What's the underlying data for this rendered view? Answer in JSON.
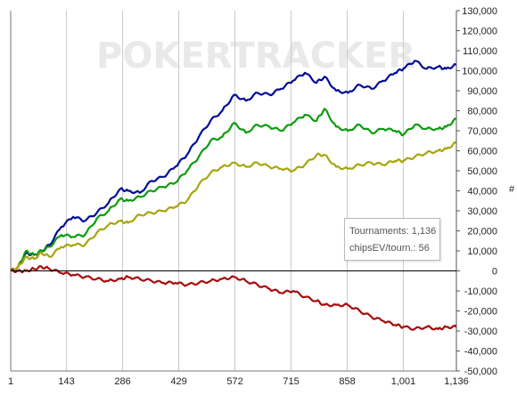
{
  "watermark": "POKERTRACKER",
  "info": {
    "tournaments_label": "Tournaments:",
    "tournaments_value": "1,136",
    "chipsev_label": "chipsEV/tourn.:",
    "chipsev_value": "56"
  },
  "colors": {
    "blue": "#000c96",
    "green": "#0c9c0c",
    "olive": "#a8a50e",
    "red": "#a80c0c",
    "zero_line": "#000000",
    "grid": "#c9c9c9"
  },
  "chart_data": {
    "type": "line",
    "x_ticks": [
      "1",
      "143",
      "286",
      "429",
      "572",
      "715",
      "858",
      "1,001",
      "1,136"
    ],
    "xlim": [
      1,
      1136
    ],
    "ylim": [
      -50000,
      130000
    ],
    "y_ticks": [
      "130,000",
      "120,000",
      "110,000",
      "100,000",
      "90,000",
      "80,000",
      "70,000",
      "60,000",
      "50,000",
      "40,000",
      "30,000",
      "20,000",
      "10,000",
      "0",
      "-10,000",
      "-20,000",
      "-30,000",
      "-40,000",
      "-50,000"
    ],
    "y_tick_values": [
      130000,
      120000,
      110000,
      100000,
      90000,
      80000,
      70000,
      60000,
      50000,
      40000,
      30000,
      20000,
      10000,
      0,
      -10000,
      -20000,
      -30000,
      -40000,
      -50000
    ],
    "ylabel": "#",
    "grid": "vertical",
    "series": [
      {
        "color_key": "blue",
        "x": [
          1,
          20,
          40,
          60,
          80,
          100,
          130,
          160,
          190,
          220,
          250,
          280,
          300,
          330,
          360,
          390,
          420,
          450,
          480,
          510,
          540,
          570,
          600,
          630,
          660,
          690,
          720,
          750,
          780,
          800,
          830,
          860,
          890,
          920,
          950,
          980,
          1001,
          1030,
          1060,
          1090,
          1110,
          1136
        ],
        "y": [
          0,
          2000,
          9000,
          8000,
          10000,
          13000,
          22000,
          27000,
          25000,
          29000,
          34000,
          41000,
          40000,
          39000,
          45000,
          47000,
          52000,
          58000,
          67000,
          75000,
          80000,
          88000,
          85000,
          89000,
          88000,
          91000,
          95000,
          99000,
          94000,
          97000,
          90000,
          89000,
          93000,
          91000,
          95000,
          99000,
          101000,
          105000,
          101000,
          102000,
          101000,
          103000
        ]
      },
      {
        "color_key": "green",
        "x": [
          1,
          20,
          40,
          60,
          80,
          100,
          130,
          160,
          190,
          220,
          250,
          280,
          300,
          330,
          360,
          390,
          420,
          450,
          480,
          510,
          540,
          570,
          600,
          630,
          660,
          690,
          720,
          750,
          780,
          800,
          830,
          860,
          890,
          920,
          950,
          980,
          1001,
          1030,
          1060,
          1090,
          1110,
          1136
        ],
        "y": [
          0,
          2000,
          10000,
          8000,
          10000,
          12000,
          18000,
          17000,
          18000,
          26000,
          30000,
          36000,
          35000,
          37000,
          40000,
          42000,
          44000,
          50000,
          57000,
          65000,
          67000,
          74000,
          69000,
          73000,
          72000,
          70000,
          74000,
          78000,
          75000,
          81000,
          72000,
          70000,
          73000,
          69000,
          71000,
          70000,
          68000,
          73000,
          71000,
          71000,
          72000,
          76000
        ]
      },
      {
        "color_key": "olive",
        "x": [
          1,
          20,
          40,
          60,
          80,
          100,
          130,
          160,
          190,
          220,
          250,
          280,
          300,
          330,
          360,
          390,
          420,
          450,
          480,
          510,
          540,
          570,
          600,
          630,
          660,
          690,
          720,
          750,
          780,
          800,
          830,
          860,
          890,
          920,
          950,
          980,
          1001,
          1030,
          1060,
          1090,
          1110,
          1136
        ],
        "y": [
          0,
          2000,
          7000,
          6000,
          9000,
          7000,
          12000,
          13000,
          13000,
          19000,
          23000,
          25000,
          24000,
          28000,
          29000,
          30000,
          32000,
          35000,
          43000,
          49000,
          52000,
          54000,
          52000,
          54000,
          52000,
          51000,
          50000,
          53000,
          58000,
          58000,
          52000,
          51000,
          53000,
          54000,
          53000,
          55000,
          55000,
          57000,
          59000,
          60000,
          61000,
          64000
        ]
      },
      {
        "color_key": "red",
        "x": [
          1,
          20,
          40,
          60,
          80,
          100,
          130,
          160,
          190,
          220,
          250,
          280,
          300,
          330,
          360,
          390,
          420,
          450,
          480,
          510,
          540,
          570,
          600,
          630,
          660,
          690,
          720,
          750,
          780,
          800,
          830,
          860,
          890,
          920,
          950,
          980,
          1001,
          1030,
          1060,
          1090,
          1110,
          1136
        ],
        "y": [
          0,
          0,
          0,
          1000,
          2000,
          1000,
          -1000,
          -2000,
          -3000,
          -4000,
          -5000,
          -4000,
          -3000,
          -4000,
          -5000,
          -6000,
          -6000,
          -7000,
          -6000,
          -5000,
          -4000,
          -3000,
          -5000,
          -7000,
          -9000,
          -11000,
          -10000,
          -13000,
          -15000,
          -17000,
          -17000,
          -17000,
          -20000,
          -23000,
          -25000,
          -27000,
          -28000,
          -29000,
          -28000,
          -29000,
          -28000,
          -28000
        ]
      }
    ]
  }
}
